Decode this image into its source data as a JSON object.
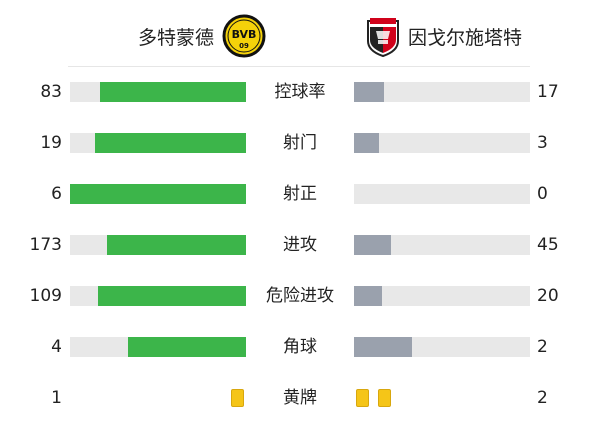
{
  "teams": {
    "home": {
      "name": "多特蒙德",
      "crest_icon": "bvb-crest-icon",
      "crest_text": "BVB",
      "crest_subtext": "09",
      "crest_color": "#f5d20a"
    },
    "away": {
      "name": "因戈尔施塔特",
      "crest_icon": "fc-ingolstadt-crest-icon",
      "crest_color": "#d0021b"
    }
  },
  "colors": {
    "home_bar": "#3cb54a",
    "away_bar": "#9aa1ad",
    "track": "#e8e8e8",
    "card": "#f5c518"
  },
  "stats": [
    {
      "label": "控球率",
      "home": "83",
      "away": "17",
      "home_fill": 0.83,
      "away_fill": 0.17
    },
    {
      "label": "射门",
      "home": "19",
      "away": "3",
      "home_fill": 0.86,
      "away_fill": 0.14
    },
    {
      "label": "射正",
      "home": "6",
      "away": "0",
      "home_fill": 1.0,
      "away_fill": 0.0
    },
    {
      "label": "进攻",
      "home": "173",
      "away": "45",
      "home_fill": 0.79,
      "away_fill": 0.21
    },
    {
      "label": "危险进攻",
      "home": "109",
      "away": "20",
      "home_fill": 0.84,
      "away_fill": 0.16
    },
    {
      "label": "角球",
      "home": "4",
      "away": "2",
      "home_fill": 0.67,
      "away_fill": 0.33
    }
  ],
  "yellow_cards": {
    "label": "黄牌",
    "home": "1",
    "away": "2",
    "home_count": 1,
    "away_count": 2
  }
}
